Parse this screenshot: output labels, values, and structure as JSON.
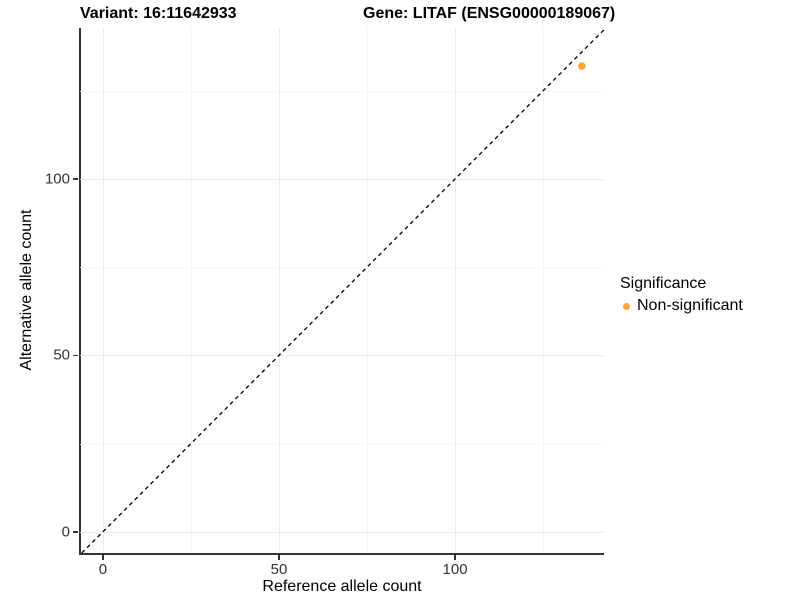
{
  "figure": {
    "title_variant": "Variant: 16:11642933",
    "title_gene": "Gene: LITAF (ENSG00000189067)"
  },
  "axes": {
    "x_label": "Reference allele count",
    "y_label": "Alternative allele count"
  },
  "legend": {
    "title": "Significance",
    "entries": [
      {
        "label": "Non-significant",
        "color": "#F9A43A"
      }
    ]
  },
  "chart_data": {
    "type": "scatter",
    "title": "Variant: 16:11642933    Gene: LITAF (ENSG00000189067)",
    "xlabel": "Reference allele count",
    "ylabel": "Alternative allele count",
    "xlim": [
      -6.5,
      142.3
    ],
    "ylim": [
      -6,
      142.8
    ],
    "x_ticks": [
      0,
      50,
      100
    ],
    "y_ticks": [
      0,
      50,
      100
    ],
    "x_minor_gridlines": [
      25,
      75,
      125
    ],
    "y_minor_gridlines": [
      25,
      75,
      125
    ],
    "grid": true,
    "legend_position": "right",
    "series": [
      {
        "name": "Non-significant",
        "color": "#F9A43A",
        "points": [
          {
            "x": 136,
            "y": 132
          }
        ]
      }
    ],
    "reference_line": {
      "type": "identity",
      "slope": 1,
      "intercept": 0,
      "style": "dashed",
      "color": "#000000"
    }
  },
  "colors": {
    "background": "#FFFFFF",
    "grid_major": "#EBEBEB",
    "grid_minor": "#F5F5F5",
    "axis_line": "#333333",
    "tick_text": "#333333",
    "title_text": "#000000",
    "point_nonsignificant": "#F9A43A"
  }
}
